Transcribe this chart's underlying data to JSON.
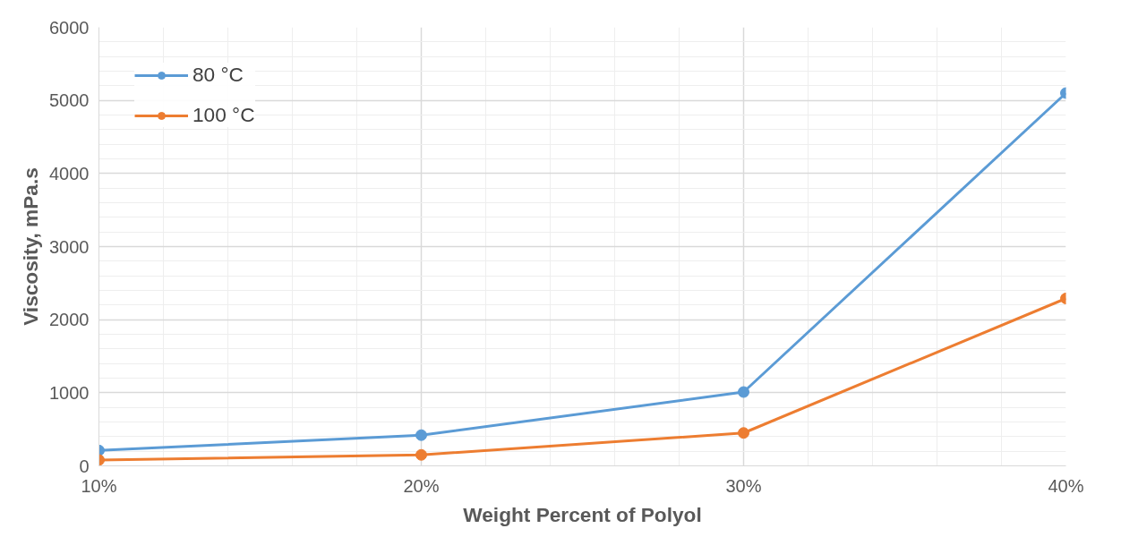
{
  "chart_data": {
    "type": "line",
    "xlabel": "Weight Percent of Polyol",
    "ylabel": "Viscosity, mPa.s",
    "x": [
      10,
      20,
      30,
      40
    ],
    "series": [
      {
        "name": "80 °C",
        "color": "#5b9bd5",
        "values": [
          210,
          420,
          1010,
          5100
        ]
      },
      {
        "name": "100 °C",
        "color": "#ed7d31",
        "values": [
          80,
          150,
          450,
          2290
        ]
      }
    ],
    "xlim": [
      10,
      40
    ],
    "xticks": [
      {
        "value": 10,
        "label": "10%"
      },
      {
        "value": 20,
        "label": "20%"
      },
      {
        "value": 30,
        "label": "30%"
      },
      {
        "value": 40,
        "label": "40%"
      }
    ],
    "ylim": [
      0,
      6000
    ],
    "yticks": [
      0,
      1000,
      2000,
      3000,
      4000,
      5000,
      6000
    ],
    "grid": true,
    "legend": "top left",
    "marker": "circle",
    "line_style": "solid"
  }
}
